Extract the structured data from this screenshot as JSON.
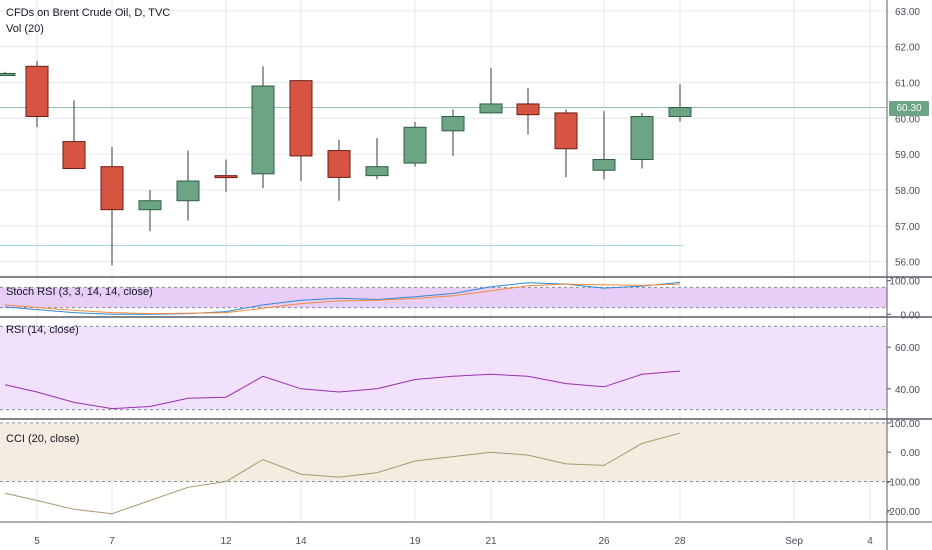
{
  "header": {
    "title": "CFDs on Brent Crude Oil, D, TVC",
    "volume_label": "Vol (20)"
  },
  "colors": {
    "up": "#6ba583",
    "down": "#d75442",
    "grid": "#e6e9ee",
    "axis_text": "#4a4f5a",
    "pane_border": "#555b66",
    "stoch_band": "#e4c4f5",
    "rsi_band": "#efdcfc",
    "cci_band": "#f3e9dc",
    "indicator_line": "#9a2fb0",
    "cci_line": "#a9986a",
    "last_price_line": "#6ba583"
  },
  "last_price": {
    "value": 60.3,
    "label": "60.30"
  },
  "chart_data": [
    {
      "type": "candlestick",
      "title": "CFDs on Brent Crude Oil, D, TVC",
      "ylim": [
        55.6,
        63.3
      ],
      "y_ticks": [
        "63.00",
        "62.00",
        "61.00",
        "60.00",
        "59.00",
        "58.00",
        "57.00",
        "56.00"
      ],
      "x_ticks": [
        "5",
        "7",
        "12",
        "14",
        "19",
        "21",
        "26",
        "28",
        "Sep",
        "4"
      ],
      "candles": [
        {
          "date": "Aug 2",
          "open": 61.25,
          "high": 61.3,
          "low": 61.2,
          "close": 61.25
        },
        {
          "date": "Aug 5",
          "open": 61.45,
          "high": 61.6,
          "low": 59.75,
          "close": 60.05
        },
        {
          "date": "Aug 6",
          "open": 59.35,
          "high": 60.5,
          "low": 58.6,
          "close": 58.6
        },
        {
          "date": "Aug 7",
          "open": 58.65,
          "high": 59.2,
          "low": 55.9,
          "close": 57.45
        },
        {
          "date": "Aug 8",
          "open": 57.45,
          "high": 58.0,
          "low": 56.85,
          "close": 57.7
        },
        {
          "date": "Aug 9",
          "open": 57.7,
          "high": 59.1,
          "low": 57.15,
          "close": 58.25
        },
        {
          "date": "Aug 12",
          "open": 58.4,
          "high": 58.85,
          "low": 57.95,
          "close": 58.35
        },
        {
          "date": "Aug 13",
          "open": 58.45,
          "high": 61.45,
          "low": 58.05,
          "close": 60.9
        },
        {
          "date": "Aug 14",
          "open": 61.05,
          "high": 61.05,
          "low": 58.25,
          "close": 58.95
        },
        {
          "date": "Aug 15",
          "open": 59.1,
          "high": 59.4,
          "low": 57.7,
          "close": 58.35
        },
        {
          "date": "Aug 16",
          "open": 58.4,
          "high": 59.45,
          "low": 58.3,
          "close": 58.65
        },
        {
          "date": "Aug 19",
          "open": 58.75,
          "high": 59.9,
          "low": 58.65,
          "close": 59.75
        },
        {
          "date": "Aug 20",
          "open": 59.65,
          "high": 60.25,
          "low": 58.95,
          "close": 60.05
        },
        {
          "date": "Aug 21",
          "open": 60.15,
          "high": 61.4,
          "low": 60.15,
          "close": 60.4
        },
        {
          "date": "Aug 22",
          "open": 60.4,
          "high": 60.85,
          "low": 59.55,
          "close": 60.1
        },
        {
          "date": "Aug 23",
          "open": 60.15,
          "high": 60.25,
          "low": 58.35,
          "close": 59.15
        },
        {
          "date": "Aug 26",
          "open": 58.55,
          "high": 60.2,
          "low": 58.3,
          "close": 58.85
        },
        {
          "date": "Aug 27",
          "open": 58.85,
          "high": 60.15,
          "low": 58.6,
          "close": 60.05
        },
        {
          "date": "Aug 28",
          "open": 60.05,
          "high": 60.95,
          "low": 59.9,
          "close": 60.3
        }
      ],
      "reference_line": 56.45
    },
    {
      "type": "line",
      "title": "Stoch RSI (3, 3, 14, 14, close)",
      "ylim": [
        -5,
        108
      ],
      "y_ticks": [
        "100.00",
        "0.00"
      ],
      "band": [
        20,
        80
      ],
      "series": [
        {
          "values": [
            22,
            14,
            5,
            0,
            0,
            2,
            8,
            28,
            42,
            48,
            44,
            52,
            62,
            82,
            94,
            90,
            78,
            84,
            95
          ]
        },
        {
          "values": [
            28,
            20,
            12,
            5,
            2,
            3,
            5,
            18,
            32,
            40,
            42,
            47,
            55,
            70,
            85,
            90,
            88,
            86,
            90
          ]
        }
      ]
    },
    {
      "type": "line",
      "title": "RSI (14, close)",
      "ylim": [
        26,
        74
      ],
      "y_ticks": [
        "60.00",
        "40.00"
      ],
      "band": [
        30,
        70
      ],
      "series": [
        {
          "values": [
            42,
            38.5,
            33.5,
            30.5,
            31.5,
            35.5,
            36,
            46,
            40,
            38.5,
            40,
            44.5,
            46,
            47,
            46,
            42.5,
            41,
            47,
            48.5
          ]
        }
      ]
    },
    {
      "type": "line",
      "title": "CCI (20, close)",
      "ylim": [
        -235,
        110
      ],
      "y_ticks": [
        "100.00",
        "0.00",
        "-100.00",
        "-200.00"
      ],
      "band": [
        -100,
        100
      ],
      "series": [
        {
          "values": [
            -140,
            -165,
            -195,
            -210,
            -165,
            -120,
            -100,
            -25,
            -75,
            -85,
            -70,
            -30,
            -15,
            0,
            -10,
            -40,
            -45,
            30,
            65
          ]
        }
      ]
    }
  ]
}
